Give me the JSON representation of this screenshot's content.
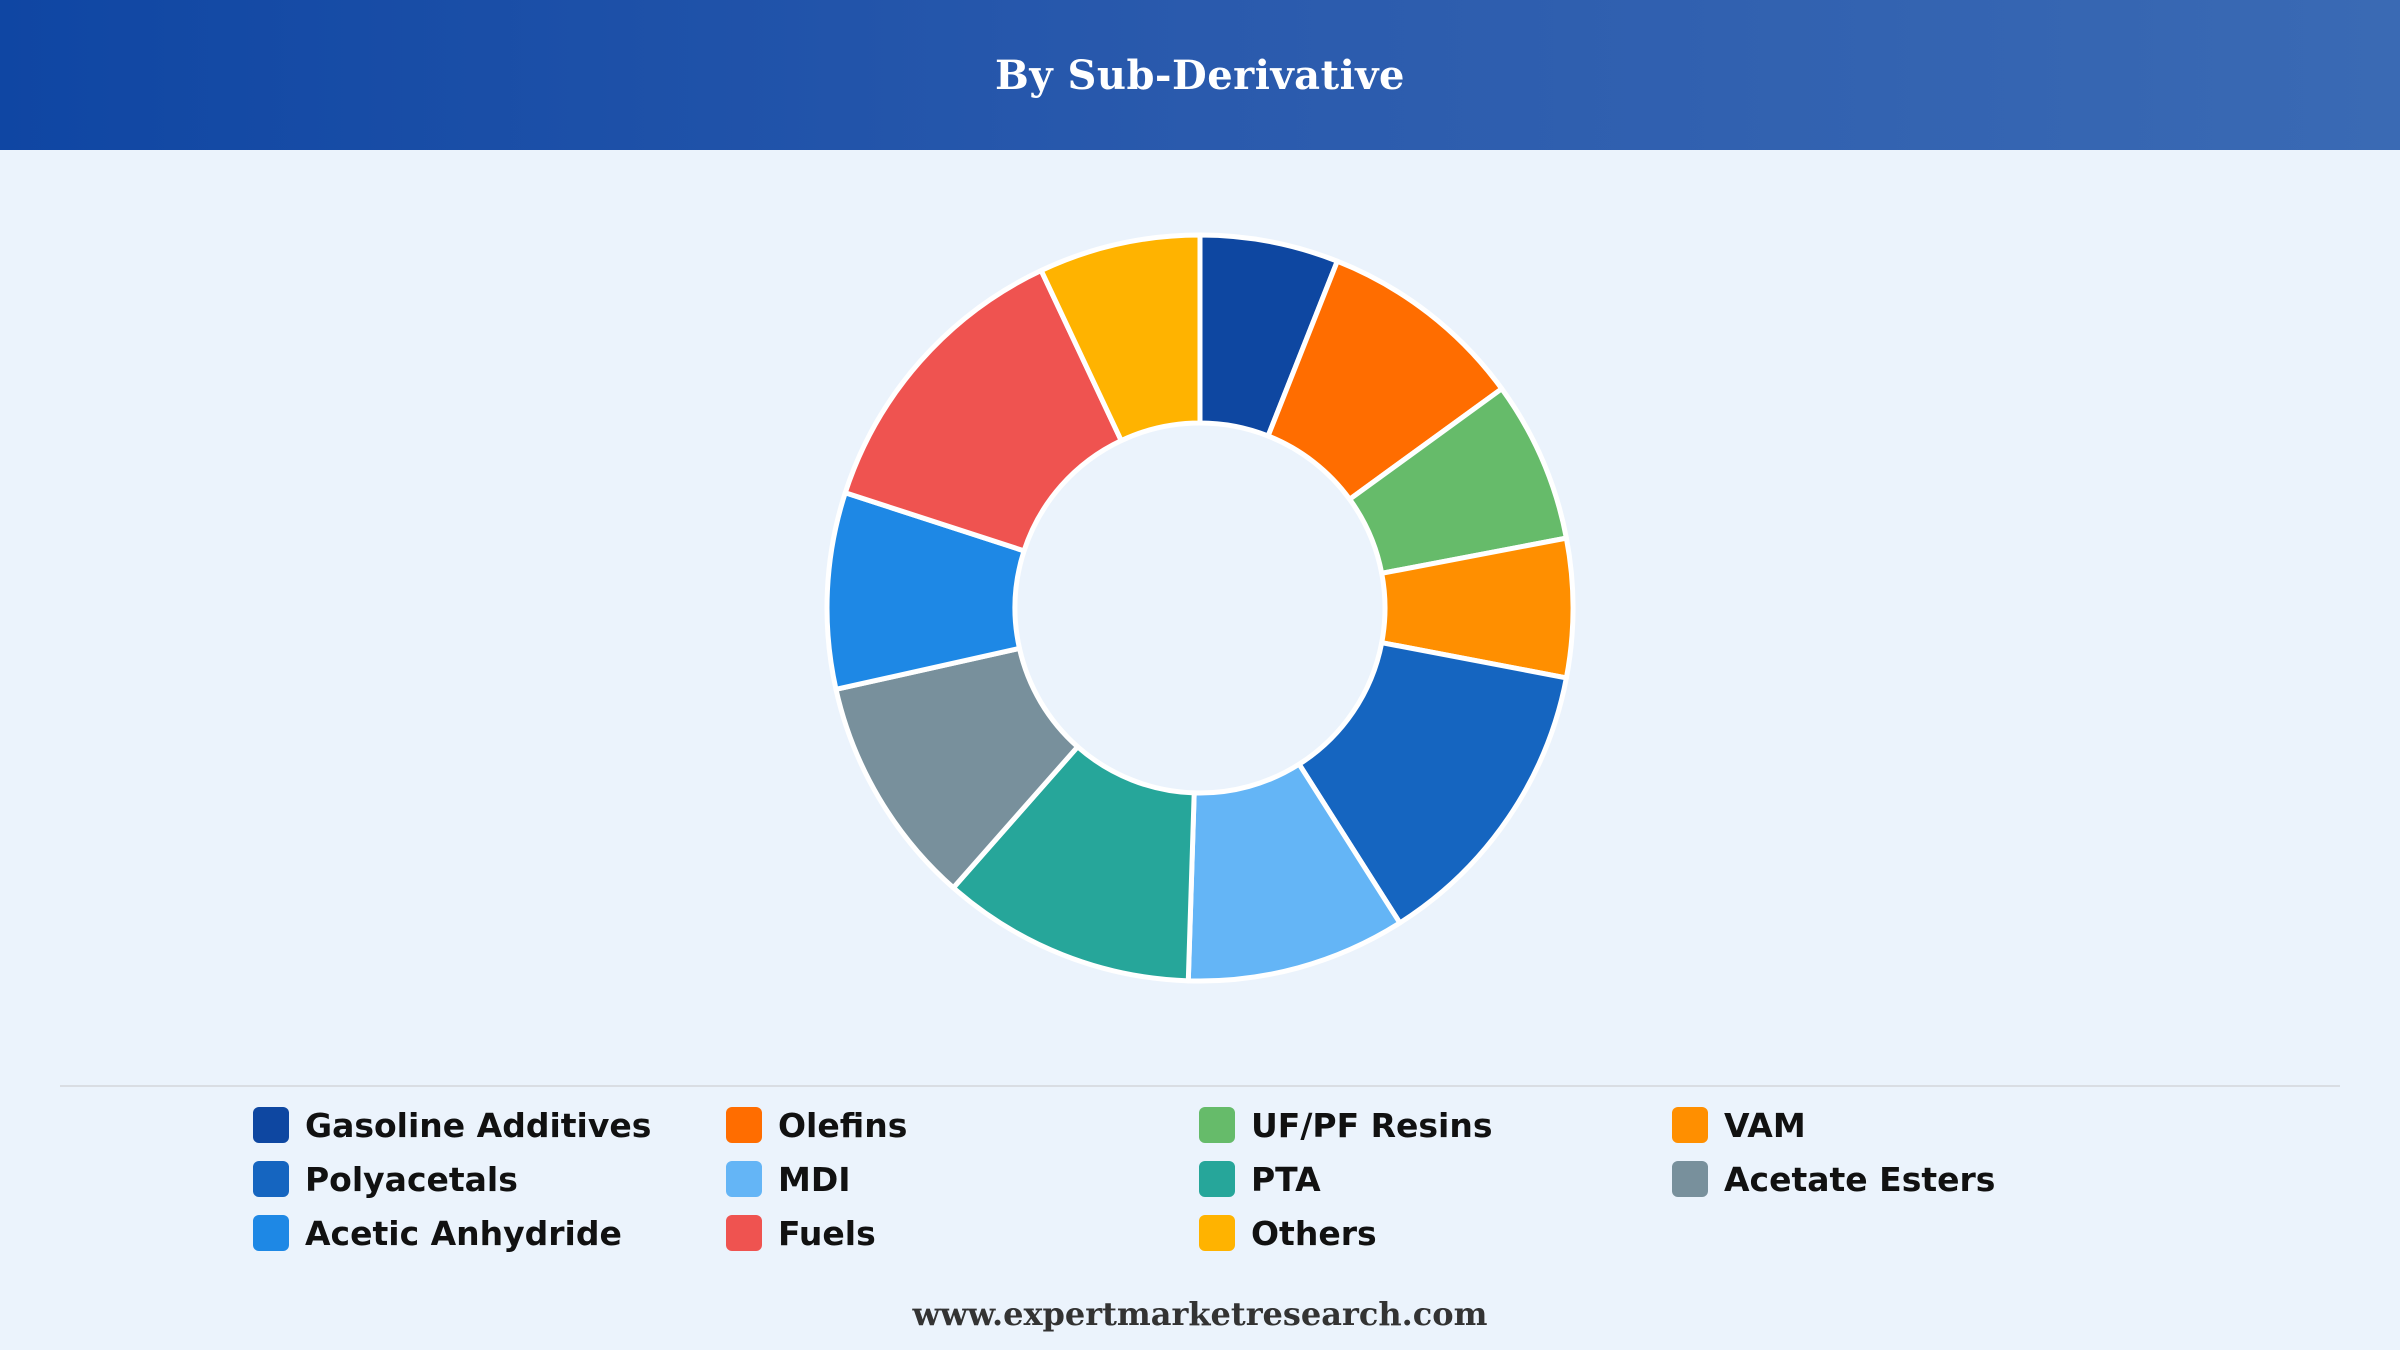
{
  "header": {
    "title": "By Sub-Derivative"
  },
  "footer": {
    "text": "www.expertmarketresearch.com"
  },
  "colors": {
    "header_start": "#0f46a3",
    "header_end": "#3a6ab4",
    "background": "#ebf3fc",
    "slice_border": "#ffffff"
  },
  "chart_data": {
    "type": "pie",
    "donut": true,
    "title": "By Sub-Derivative",
    "legend_position": "bottom",
    "series": [
      {
        "name": "Gasoline Additives",
        "value": 6,
        "color": "#0e47a1"
      },
      {
        "name": "Olefins",
        "value": 9,
        "color": "#ff6d00"
      },
      {
        "name": "UF/PF Resins",
        "value": 7,
        "color": "#66bb6a"
      },
      {
        "name": "VAM",
        "value": 6,
        "color": "#ff8f00"
      },
      {
        "name": "Polyacetals",
        "value": 13,
        "color": "#1565c0"
      },
      {
        "name": "MDI",
        "value": 9.5,
        "color": "#64b5f6"
      },
      {
        "name": "PTA",
        "value": 11,
        "color": "#26a69a"
      },
      {
        "name": "Acetate Esters",
        "value": 10,
        "color": "#78909c"
      },
      {
        "name": "Acetic Anhydride",
        "value": 8.5,
        "color": "#1e88e5"
      },
      {
        "name": "Fuels",
        "value": 13,
        "color": "#ef5350"
      },
      {
        "name": "Others",
        "value": 7,
        "color": "#ffb300"
      }
    ]
  }
}
